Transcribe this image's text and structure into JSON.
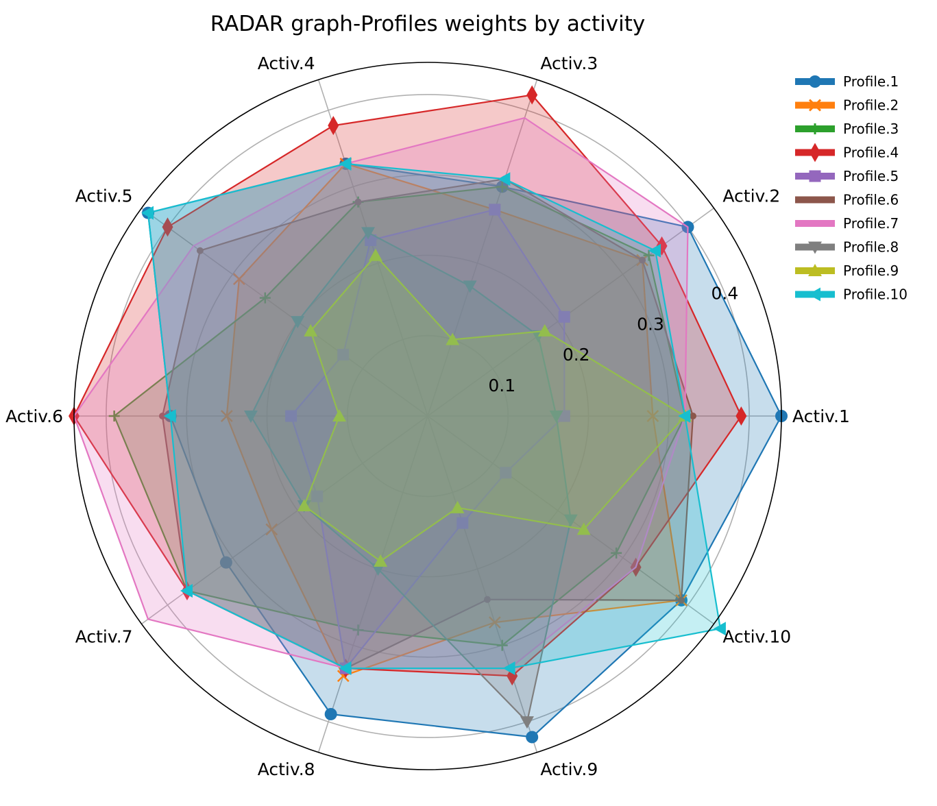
{
  "chart_data": {
    "type": "radar",
    "title": "RADAR graph-Profiles weights by activity",
    "categories": [
      "Activ.1",
      "Activ.2",
      "Activ.3",
      "Activ.4",
      "Activ.5",
      "Activ.6",
      "Activ.7",
      "Activ.8",
      "Activ.9",
      "Activ.10"
    ],
    "rlim": [
      0,
      0.44
    ],
    "rticks": [
      0.1,
      0.2,
      0.3,
      0.4
    ],
    "rtick_labels": [
      "0.1",
      "0.2",
      "0.3",
      "0.4"
    ],
    "grid": true,
    "fill_alpha": 0.25,
    "legend_position": "top-right",
    "series": [
      {
        "name": "Profile.1",
        "color": "#1f77b4",
        "marker": "circle",
        "values": [
          0.44,
          0.4,
          0.3,
          0.33,
          0.43,
          0.32,
          0.31,
          0.39,
          0.42,
          0.39
        ]
      },
      {
        "name": "Profile.2",
        "color": "#ff7f0e",
        "marker": "x",
        "values": [
          0.28,
          0.33,
          0.27,
          0.33,
          0.29,
          0.25,
          0.24,
          0.34,
          0.27,
          0.39
        ]
      },
      {
        "name": "Profile.3",
        "color": "#2ca02c",
        "marker": "plus",
        "values": [
          0.32,
          0.34,
          0.3,
          0.28,
          0.25,
          0.39,
          0.37,
          0.28,
          0.3,
          0.29
        ]
      },
      {
        "name": "Profile.4",
        "color": "#d62728",
        "marker": "thin_diamond",
        "values": [
          0.39,
          0.36,
          0.42,
          0.38,
          0.4,
          0.44,
          0.37,
          0.33,
          0.34,
          0.32
        ]
      },
      {
        "name": "Profile.5",
        "color": "#9467bd",
        "marker": "square",
        "values": [
          0.17,
          0.21,
          0.27,
          0.23,
          0.13,
          0.17,
          0.17,
          0.33,
          0.14,
          0.12
        ]
      },
      {
        "name": "Profile.6",
        "color": "#8c564b",
        "marker": "point",
        "values": [
          0.33,
          0.33,
          0.31,
          0.28,
          0.35,
          0.33,
          0.37,
          0.33,
          0.24,
          0.39
        ]
      },
      {
        "name": "Profile.7",
        "color": "#e377c2",
        "marker": "none",
        "values": [
          0.32,
          0.4,
          0.39,
          0.33,
          0.36,
          0.44,
          0.43,
          0.33,
          0.33,
          0.32
        ]
      },
      {
        "name": "Profile.8",
        "color": "#7f7f7f",
        "marker": "triangle_down",
        "values": [
          0.16,
          0.17,
          0.17,
          0.24,
          0.2,
          0.22,
          0.19,
          0.2,
          0.4,
          0.22
        ]
      },
      {
        "name": "Profile.9",
        "color": "#bcbd22",
        "marker": "triangle_up",
        "values": [
          0.32,
          0.18,
          0.1,
          0.21,
          0.18,
          0.11,
          0.19,
          0.19,
          0.12,
          0.24
        ]
      },
      {
        "name": "Profile.10",
        "color": "#17becf",
        "marker": "triangle_left",
        "values": [
          0.32,
          0.35,
          0.31,
          0.33,
          0.43,
          0.32,
          0.37,
          0.33,
          0.33,
          0.45
        ]
      }
    ]
  }
}
